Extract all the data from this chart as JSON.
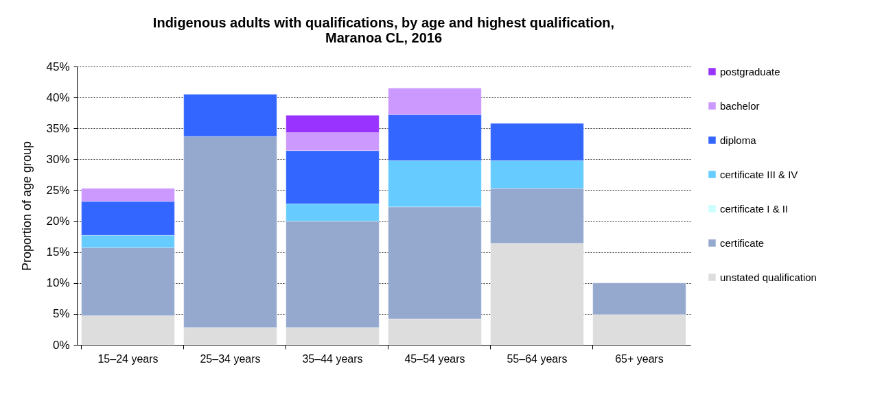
{
  "chart_data": {
    "type": "bar",
    "stacked": true,
    "title": "Indigenous adults with qualifications, by age and highest qualification,\nMaranoa CL, 2016",
    "ylabel": "Proportion of age group",
    "categories": [
      "15–24 years",
      "25–34 years",
      "35–44 years",
      "45–54 years",
      "55–64 years",
      "65+ years"
    ],
    "series": [
      {
        "name": "unstated qualification",
        "color": "#dddddd",
        "values": [
          4.7,
          2.8,
          2.8,
          4.2,
          16.4,
          4.9
        ]
      },
      {
        "name": "certificate",
        "color": "#95a9cf",
        "values": [
          11.0,
          30.9,
          17.2,
          18.1,
          8.9,
          5.1
        ]
      },
      {
        "name": "certificate I & II",
        "color": "#ccffff",
        "values": [
          null,
          null,
          null,
          null,
          null,
          null
        ]
      },
      {
        "name": "certificate III & IV",
        "color": "#66ccff",
        "values": [
          2.0,
          null,
          2.8,
          7.5,
          4.5,
          null
        ]
      },
      {
        "name": "diploma",
        "color": "#3366ff",
        "values": [
          5.5,
          6.8,
          8.6,
          7.4,
          6.0,
          null
        ]
      },
      {
        "name": "bachelor",
        "color": "#cc99ff",
        "values": [
          2.1,
          null,
          2.9,
          4.3,
          null,
          null
        ]
      },
      {
        "name": "postgraduate",
        "color": "#9933ff",
        "values": [
          null,
          null,
          2.8,
          null,
          null,
          null
        ]
      }
    ],
    "ylim": [
      0,
      45
    ],
    "yticks": [
      {
        "value": 0,
        "label": "0%"
      },
      {
        "value": 5,
        "label": "5%"
      },
      {
        "value": 10,
        "label": "10%"
      },
      {
        "value": 15,
        "label": "15%"
      },
      {
        "value": 20,
        "label": "20%"
      },
      {
        "value": 25,
        "label": "25%"
      },
      {
        "value": 30,
        "label": "30%"
      },
      {
        "value": 35,
        "label": "35%"
      },
      {
        "value": 40,
        "label": "40%"
      },
      {
        "value": 45,
        "label": "45%"
      }
    ],
    "grid": "y",
    "legend": "right"
  }
}
